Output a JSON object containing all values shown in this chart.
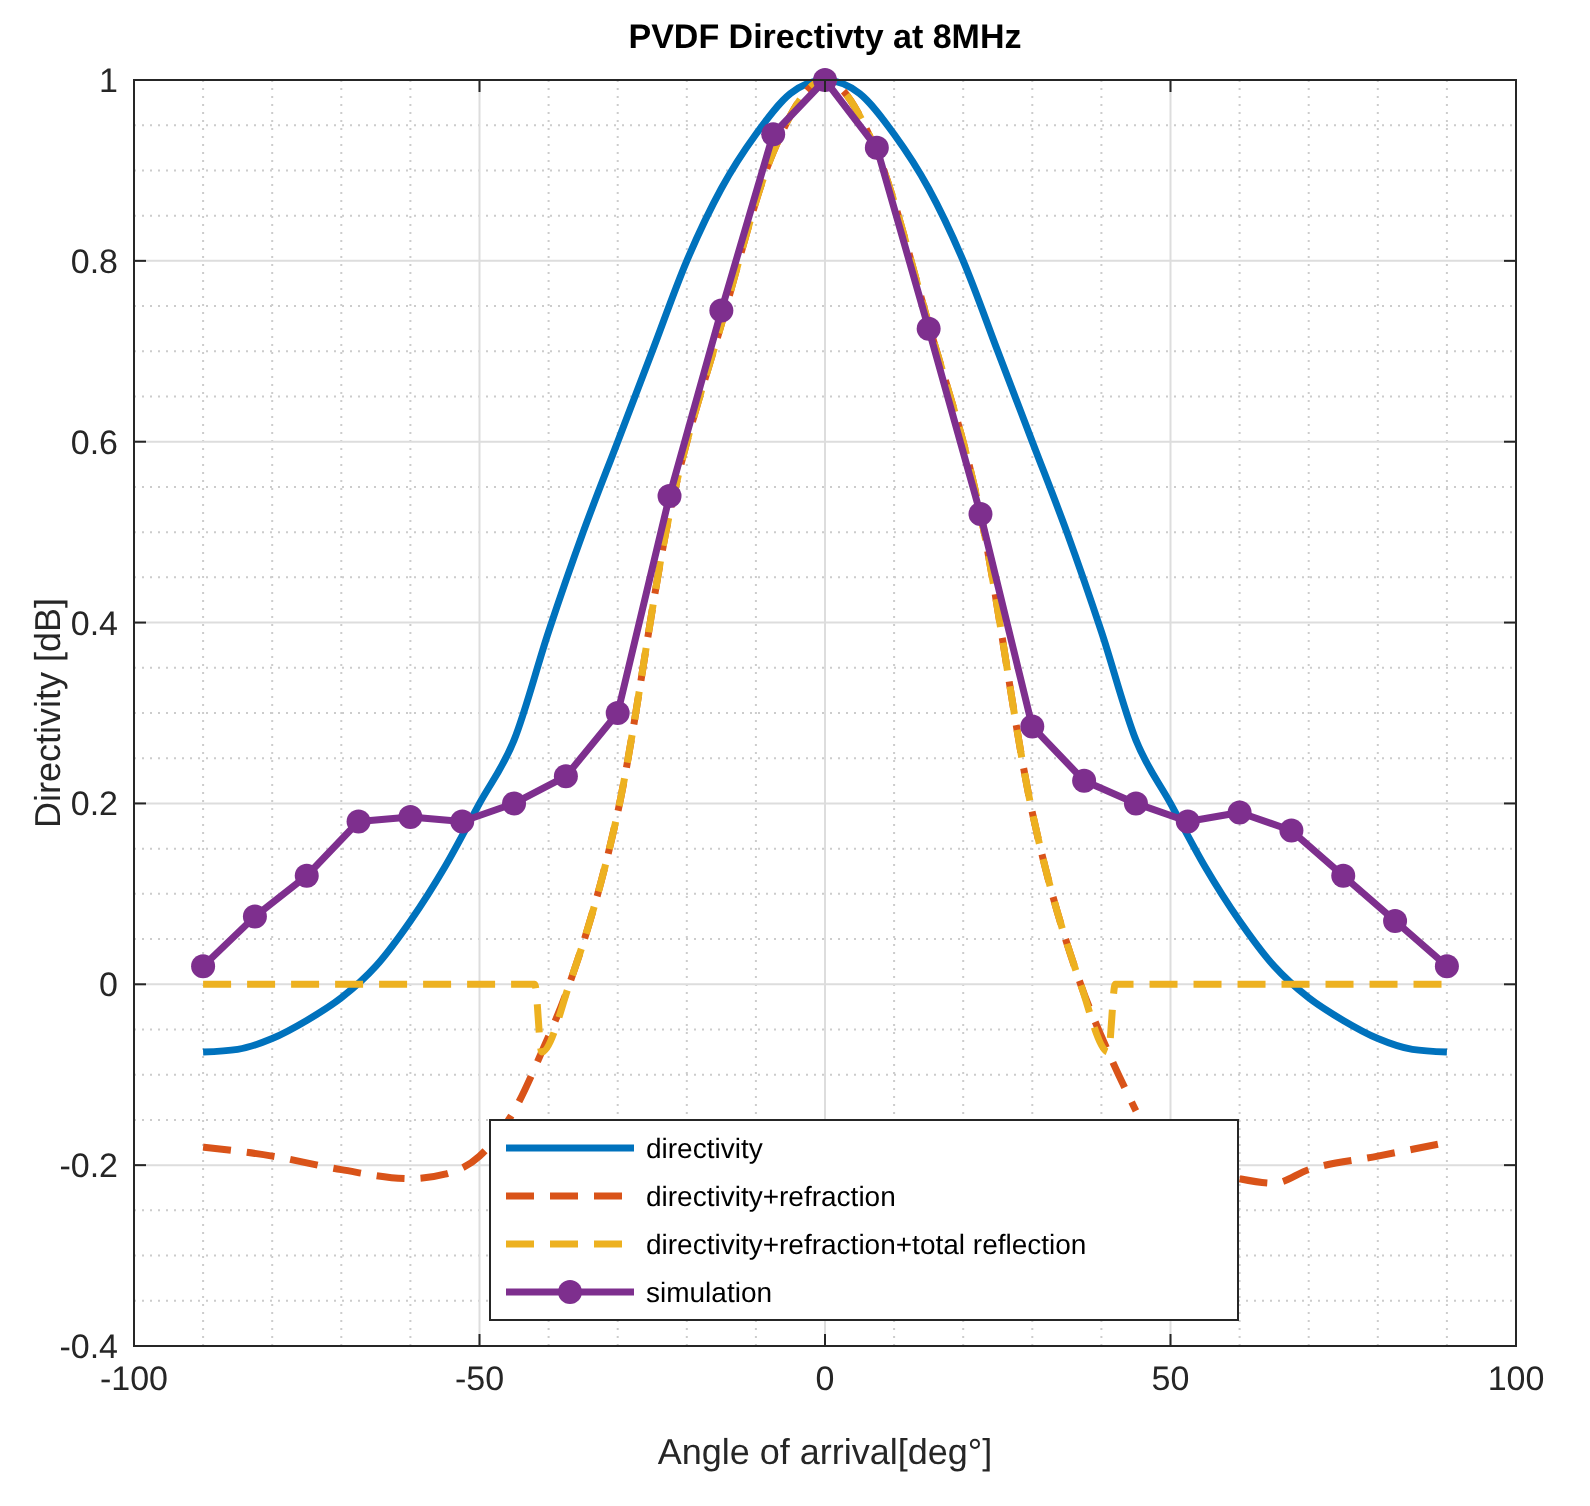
{
  "chart_data": {
    "type": "line",
    "title": "PVDF Directivty at 8MHz",
    "xlabel": "Angle of arrival[deg°]",
    "ylabel": "Directivity [dB]",
    "xlim": [
      -100,
      100
    ],
    "ylim": [
      -0.4,
      1
    ],
    "xticks": [
      -100,
      -50,
      0,
      50,
      100
    ],
    "yticks": [
      -0.4,
      -0.2,
      0,
      0.2,
      0.4,
      0.6,
      0.8,
      1
    ],
    "grid": true,
    "legend": "bottom",
    "series": [
      {
        "name": "directivity",
        "color": "#0072bd",
        "line_style": "solid",
        "marker": "none",
        "x": [
          -90,
          -85,
          -80,
          -75,
          -70,
          -65,
          -60,
          -55,
          -50,
          -45,
          -40,
          -35,
          -30,
          -25,
          -20,
          -15,
          -10,
          -5,
          0,
          5,
          10,
          15,
          20,
          25,
          30,
          35,
          40,
          45,
          50,
          55,
          60,
          65,
          70,
          75,
          80,
          85,
          90
        ],
        "values": [
          -0.075,
          -0.072,
          -0.06,
          -0.04,
          -0.015,
          0.02,
          0.07,
          0.13,
          0.2,
          0.27,
          0.39,
          0.5,
          0.6,
          0.7,
          0.8,
          0.88,
          0.94,
          0.985,
          1,
          0.985,
          0.94,
          0.88,
          0.8,
          0.7,
          0.6,
          0.5,
          0.39,
          0.27,
          0.2,
          0.13,
          0.07,
          0.02,
          -0.015,
          -0.04,
          -0.06,
          -0.072,
          -0.075
        ]
      },
      {
        "name": "directivity+refraction",
        "color": "#d95319",
        "line_style": "dashed",
        "marker": "none",
        "x": [
          -90,
          -80,
          -70,
          -60,
          -55,
          -50,
          -45,
          -41,
          -37,
          -30,
          -22.5,
          -15,
          -7.5,
          0,
          7.5,
          15,
          22.5,
          30,
          37,
          41,
          45,
          50,
          55,
          60,
          65,
          70,
          80,
          90
        ],
        "values": [
          -0.18,
          -0.19,
          -0.205,
          -0.215,
          -0.21,
          -0.19,
          -0.14,
          -0.075,
          0,
          0.19,
          0.52,
          0.73,
          0.92,
          1,
          0.92,
          0.73,
          0.52,
          0.19,
          0,
          -0.075,
          -0.14,
          null,
          null,
          -0.215,
          -0.22,
          -0.205,
          -0.19,
          -0.175
        ]
      },
      {
        "name": "directivity+refraction+total reflection",
        "color": "#edb120",
        "line_style": "dashed",
        "marker": "none",
        "x": [
          -90,
          -42,
          -41,
          -37,
          -30,
          -22.5,
          -15,
          -7.5,
          0,
          7.5,
          15,
          22.5,
          30,
          37,
          41,
          42,
          90
        ],
        "values": [
          0,
          0,
          -0.075,
          0,
          0.19,
          0.52,
          0.73,
          0.92,
          1,
          0.92,
          0.73,
          0.52,
          0.19,
          0,
          -0.075,
          0,
          0
        ]
      },
      {
        "name": "simulation",
        "color": "#7e2f8e",
        "line_style": "solid",
        "marker": "circle",
        "x": [
          -90,
          -82.5,
          -75,
          -67.5,
          -60,
          -52.5,
          -45,
          -37.5,
          -30,
          -22.5,
          -15,
          -7.5,
          0,
          7.5,
          15,
          22.5,
          30,
          37.5,
          45,
          52.5,
          60,
          67.5,
          75,
          82.5,
          90
        ],
        "values": [
          0.02,
          0.075,
          0.12,
          0.18,
          0.185,
          0.18,
          0.2,
          0.23,
          0.3,
          0.54,
          0.745,
          0.94,
          1,
          0.925,
          0.725,
          0.52,
          0.285,
          0.225,
          0.2,
          0.18,
          0.19,
          0.17,
          0.12,
          0.07,
          0.02
        ]
      }
    ]
  }
}
